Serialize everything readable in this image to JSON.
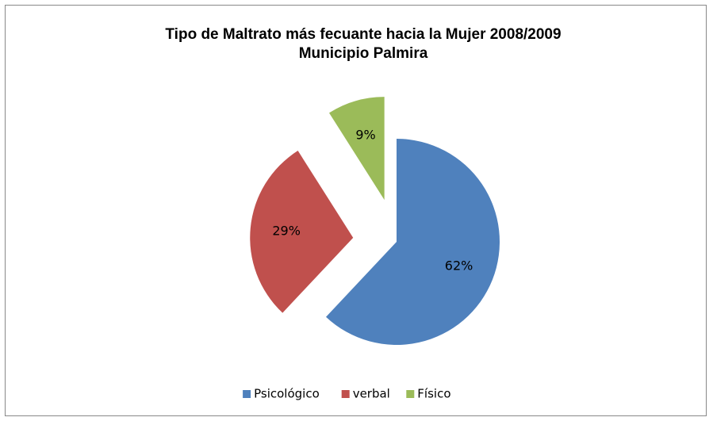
{
  "chart_data": {
    "type": "pie",
    "title": "Tipo de Maltrato más fecuante hacia la Mujer 2008/2009",
    "subtitle": "Municipio Palmira",
    "categories": [
      "Psicológico",
      "verbal",
      "Físico"
    ],
    "values": [
      62,
      29,
      9
    ],
    "value_labels": [
      "62%",
      "29%",
      "9%"
    ],
    "colors": [
      "#4f81bd",
      "#c0504d",
      "#9bbb59"
    ],
    "legend": "bottom"
  }
}
